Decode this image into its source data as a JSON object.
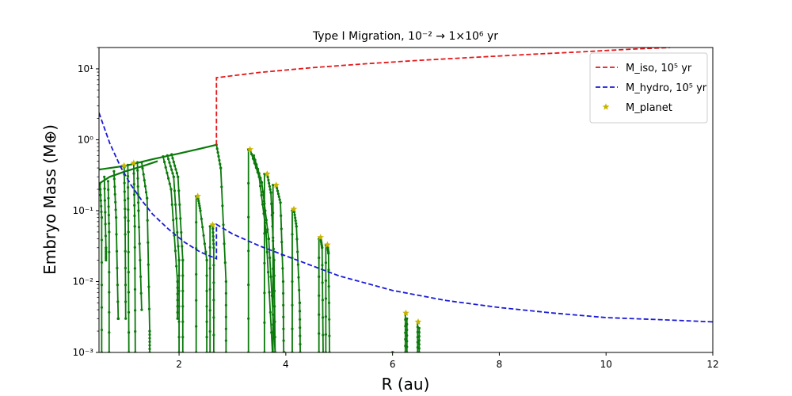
{
  "chart_data": {
    "type": "line",
    "title": "Type I Migration, 10⁻² → 1×10⁶ yr",
    "xlabel": "R (au)",
    "ylabel": "Embryo Mass (M⊕)",
    "xlim": [
      0.5,
      12
    ],
    "ylim": [
      0.001,
      20
    ],
    "yscale": "log",
    "xticks": [
      2,
      4,
      6,
      8,
      10,
      12
    ],
    "xtick_labels": [
      "2",
      "4",
      "6",
      "8",
      "10",
      "12"
    ],
    "yticks": [
      0.001,
      0.01,
      0.1,
      1,
      10
    ],
    "ytick_labels": [
      "10⁻³",
      "10⁻²",
      "10⁻¹",
      "10⁰",
      "10¹"
    ],
    "legend": {
      "position": "top-right",
      "entries": [
        {
          "label": "M_iso, 10⁵ yr",
          "color": "#e31a1c",
          "style": "dashed"
        },
        {
          "label": "M_hydro, 10⁵ yr",
          "color": "#1a1ad6",
          "style": "dashed"
        },
        {
          "label": "M_planet",
          "color": "#c8b400",
          "style": "star"
        }
      ]
    },
    "series": [
      {
        "name": "M_iso, 10⁵ yr",
        "color": "#e31a1c",
        "x": [
          2.7,
          2.7,
          2.7,
          3.5,
          4.5,
          5.5,
          6.5,
          7.5,
          8.5,
          9.5,
          10.5,
          11.2
        ],
        "y": [
          0.85,
          7.5,
          7.5,
          8.9,
          10.4,
          11.8,
          13.2,
          14.5,
          15.9,
          17.3,
          19.0,
          20.0
        ]
      },
      {
        "name": "M_hydro, 10⁵ yr",
        "color": "#1a1ad6",
        "x": [
          0.5,
          0.7,
          0.9,
          1.1,
          1.3,
          1.5,
          1.8,
          2.1,
          2.4,
          2.7,
          2.7,
          3.0,
          3.5,
          4.0,
          5.0,
          6.0,
          7.0,
          8.0,
          9.0,
          10.0,
          11.0,
          12.0
        ],
        "y": [
          2.4,
          0.9,
          0.42,
          0.23,
          0.14,
          0.09,
          0.055,
          0.036,
          0.026,
          0.021,
          0.064,
          0.047,
          0.032,
          0.023,
          0.012,
          0.0075,
          0.0054,
          0.0043,
          0.0036,
          0.0031,
          0.0029,
          0.0027
        ]
      },
      {
        "name": "M_planet",
        "color": "#c8b400",
        "x": [
          0.97,
          1.15,
          2.35,
          2.63,
          3.33,
          3.65,
          3.82,
          4.15,
          4.65,
          4.78,
          6.25,
          6.48
        ],
        "y": [
          0.43,
          0.47,
          0.16,
          0.063,
          0.73,
          0.33,
          0.23,
          0.105,
          0.042,
          0.033,
          0.0036,
          0.0027
        ]
      }
    ],
    "embryo_tracks": {
      "color": "#0a7a0a",
      "upper_envelope": {
        "x": [
          0.5,
          1.0,
          1.5,
          2.0,
          2.3,
          2.5,
          2.7
        ],
        "y": [
          0.38,
          0.43,
          0.53,
          0.64,
          0.72,
          0.78,
          0.85
        ]
      },
      "lower_envelope": {
        "x": [
          0.5,
          0.7,
          1.0,
          1.3,
          1.6
        ],
        "y": [
          0.24,
          0.3,
          0.36,
          0.42,
          0.5
        ]
      },
      "tracks": [
        {
          "x": [
            0.52,
            0.55,
            0.55
          ],
          "y": [
            0.24,
            0.08,
            0.001
          ]
        },
        {
          "x": [
            0.6,
            0.63,
            0.63
          ],
          "y": [
            0.3,
            0.03,
            0.02
          ]
        },
        {
          "x": [
            0.67,
            0.69,
            0.69
          ],
          "y": [
            0.26,
            0.05,
            0.001
          ]
        },
        {
          "x": [
            0.78,
            0.82,
            0.86,
            0.86
          ],
          "y": [
            0.36,
            0.08,
            0.003,
            0.003
          ]
        },
        {
          "x": [
            0.97,
            0.99,
            1.0
          ],
          "y": [
            0.43,
            0.08,
            0.003
          ]
        },
        {
          "x": [
            1.04,
            1.05,
            1.06
          ],
          "y": [
            0.44,
            0.05,
            0.001
          ]
        },
        {
          "x": [
            1.15,
            1.17,
            1.18
          ],
          "y": [
            0.47,
            0.06,
            0.001
          ]
        },
        {
          "x": [
            1.22,
            1.24,
            1.3
          ],
          "y": [
            0.48,
            0.1,
            0.004
          ]
        },
        {
          "x": [
            1.3,
            1.4,
            1.45,
            1.45
          ],
          "y": [
            0.48,
            0.15,
            0.002,
            0.001
          ]
        },
        {
          "x": [
            1.7,
            1.85,
            1.97,
            1.97
          ],
          "y": [
            0.58,
            0.2,
            0.01,
            0.003
          ]
        },
        {
          "x": [
            1.78,
            1.9,
            2.0,
            2.0
          ],
          "y": [
            0.6,
            0.3,
            0.02,
            0.001
          ]
        },
        {
          "x": [
            1.86,
            1.98,
            2.07,
            2.07
          ],
          "y": [
            0.62,
            0.3,
            0.02,
            0.001
          ]
        },
        {
          "x": [
            2.35,
            2.4,
            2.52,
            2.52
          ],
          "y": [
            0.16,
            0.1,
            0.02,
            0.001
          ]
        },
        {
          "x": [
            2.32,
            2.32
          ],
          "y": [
            0.16,
            0.001
          ]
        },
        {
          "x": [
            2.63,
            2.65,
            2.65
          ],
          "y": [
            0.063,
            0.03,
            0.001
          ]
        },
        {
          "x": [
            2.58,
            2.58
          ],
          "y": [
            0.06,
            0.001
          ]
        },
        {
          "x": [
            2.7,
            2.78,
            2.88,
            2.88
          ],
          "y": [
            0.85,
            0.4,
            0.01,
            0.001
          ]
        },
        {
          "x": [
            3.3,
            3.3,
            3.33
          ],
          "y": [
            0.001,
            0.73,
            0.73
          ]
        },
        {
          "x": [
            3.33,
            3.5,
            3.63,
            3.75
          ],
          "y": [
            0.73,
            0.3,
            0.05,
            0.001
          ]
        },
        {
          "x": [
            3.4,
            3.55,
            3.68,
            3.8
          ],
          "y": [
            0.6,
            0.25,
            0.04,
            0.001
          ]
        },
        {
          "x": [
            3.65,
            3.72,
            3.78,
            3.8
          ],
          "y": [
            0.33,
            0.18,
            0.02,
            0.001
          ]
        },
        {
          "x": [
            3.6,
            3.6
          ],
          "y": [
            0.33,
            0.001
          ]
        },
        {
          "x": [
            3.82,
            3.9,
            3.95,
            3.96
          ],
          "y": [
            0.23,
            0.13,
            0.01,
            0.001
          ]
        },
        {
          "x": [
            3.76,
            3.76
          ],
          "y": [
            0.23,
            0.001
          ]
        },
        {
          "x": [
            4.15,
            4.2,
            4.26,
            4.27
          ],
          "y": [
            0.105,
            0.06,
            0.005,
            0.001
          ]
        },
        {
          "x": [
            4.12,
            4.12
          ],
          "y": [
            0.1,
            0.001
          ]
        },
        {
          "x": [
            4.65,
            4.68,
            4.7
          ],
          "y": [
            0.042,
            0.03,
            0.001
          ]
        },
        {
          "x": [
            4.62,
            4.62
          ],
          "y": [
            0.04,
            0.001
          ]
        },
        {
          "x": [
            4.78,
            4.8,
            4.82
          ],
          "y": [
            0.033,
            0.025,
            0.001
          ]
        },
        {
          "x": [
            4.75,
            4.75
          ],
          "y": [
            0.033,
            0.001
          ]
        },
        {
          "x": [
            3.97,
            3.97
          ],
          "y": [
            0.001,
            0.001
          ]
        },
        {
          "x": [
            6.0,
            6.0
          ],
          "y": [
            0.001,
            0.001
          ]
        },
        {
          "x": [
            6.24,
            6.24
          ],
          "y": [
            0.0036,
            0.001
          ]
        },
        {
          "x": [
            6.27,
            6.27
          ],
          "y": [
            0.003,
            0.001
          ]
        },
        {
          "x": [
            6.47,
            6.47
          ],
          "y": [
            0.0027,
            0.001
          ]
        },
        {
          "x": [
            6.5,
            6.5
          ],
          "y": [
            0.0022,
            0.001
          ]
        }
      ]
    }
  }
}
